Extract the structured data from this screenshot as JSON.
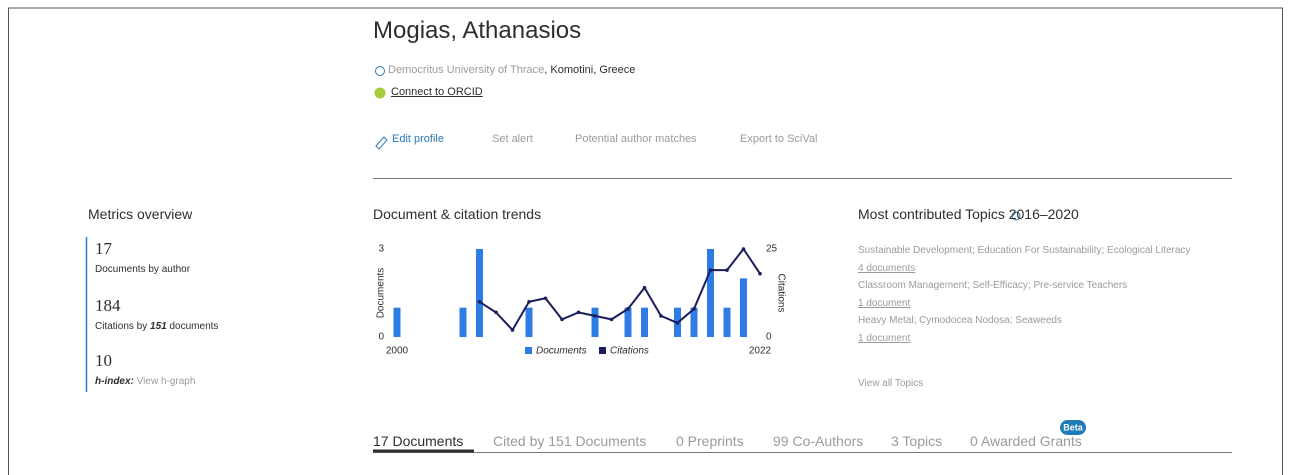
{
  "header": {
    "name": "Mogias, Athanasios",
    "institution": "Democritus University of Thrace",
    "location": ", Komotini, Greece",
    "orcid": "Connect to ORCID",
    "actions": [
      "Edit profile",
      "Set alert",
      "Potential author matches",
      "Export to SciVal"
    ]
  },
  "metrics": {
    "title": "Metrics overview",
    "documents": {
      "value": "17",
      "label": "Documents by author"
    },
    "citations": {
      "value": "184",
      "label_start": "Citations by",
      "count": "151",
      "label_end": "documents"
    },
    "h_index": {
      "value": "10",
      "label": "h-index:",
      "link": "View h-graph"
    }
  },
  "chart_data": {
    "type": "bar-line",
    "title": "Document & citation trends",
    "x": [
      2000,
      2001,
      2002,
      2003,
      2004,
      2005,
      2006,
      2007,
      2008,
      2009,
      2010,
      2011,
      2012,
      2013,
      2014,
      2015,
      2016,
      2017,
      2018,
      2019,
      2020,
      2021,
      2022
    ],
    "xlim": [
      2000,
      2022
    ],
    "xticks": [
      2000,
      2022
    ],
    "ylabel": "Documents",
    "ylim": [
      0,
      3
    ],
    "yticks": [
      0,
      3
    ],
    "y2label": "Citations",
    "y2lim": [
      0,
      25
    ],
    "y2ticks": [
      0,
      25
    ],
    "series": [
      {
        "name": "Documents",
        "type": "bar",
        "color": "#2e7de6",
        "values": [
          1,
          0,
          0,
          0,
          1,
          3,
          0,
          0,
          1,
          0,
          0,
          0,
          1,
          0,
          1,
          1,
          0,
          1,
          1,
          3,
          1,
          2,
          0
        ]
      },
      {
        "name": "Citations",
        "type": "line",
        "axis": "y2",
        "color": "#1b1d5c",
        "values": [
          null,
          null,
          null,
          null,
          null,
          10,
          7,
          2,
          10,
          11,
          5,
          7,
          6,
          5,
          8,
          14,
          6,
          4,
          8,
          19,
          19,
          25,
          18
        ]
      }
    ]
  },
  "topics": {
    "title": "Most contributed Topics 2016–2020",
    "items": [
      {
        "name": "Sustainable Development; Education For Sustainability; Ecological Literacy",
        "count": "4 documents"
      },
      {
        "name": "Classroom Management; Self-Efficacy; Pre-service Teachers",
        "count": "1 document"
      },
      {
        "name": "Heavy Metal; Cymodocea Nodosa; Seaweeds",
        "count": "1 document"
      }
    ],
    "link": "View all Topics"
  },
  "tabs": {
    "items": [
      "17 Documents",
      "Cited by 151 Documents",
      "0 Preprints",
      "99 Co-Authors",
      "3 Topics",
      "0 Awarded Grants"
    ],
    "badge": "Beta"
  }
}
